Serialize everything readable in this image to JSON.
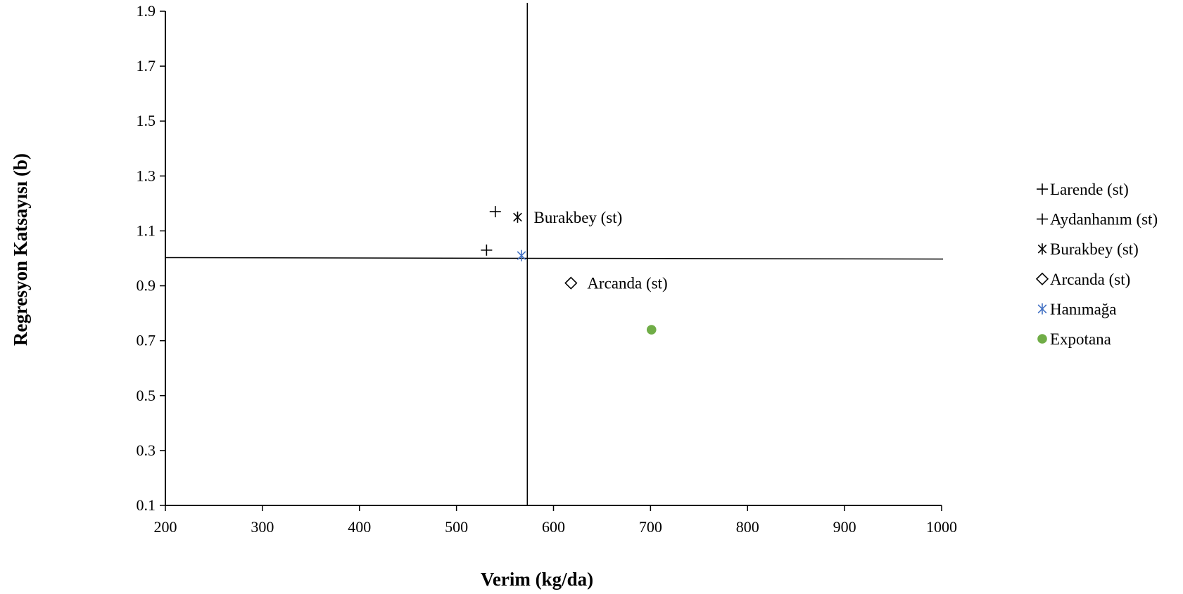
{
  "chart_data": {
    "type": "scatter",
    "title": "",
    "xlabel": "Verim (kg/da)",
    "ylabel": "Regresyon Katsayısı (b)",
    "xlim": [
      200,
      1000
    ],
    "ylim": [
      0.1,
      1.9
    ],
    "xticks": [
      "200",
      "300",
      "400",
      "500",
      "600",
      "700",
      "800",
      "900",
      "1000"
    ],
    "yticks": [
      "0.1",
      "0.3",
      "0.5",
      "0.7",
      "0.9",
      "1.1",
      "1.3",
      "1.5",
      "1.7",
      "1.9"
    ],
    "grid": false,
    "legend_position": "right",
    "reference_lines": {
      "x_mean": 573,
      "y": 1.0
    },
    "series": [
      {
        "name": "Larende (st)",
        "marker": "plus",
        "color": "#000000",
        "x": 540,
        "y": 1.17,
        "label": ""
      },
      {
        "name": "Aydanhanım (st)",
        "marker": "plus",
        "color": "#000000",
        "x": 531,
        "y": 1.03,
        "label": ""
      },
      {
        "name": "Burakbey (st)",
        "marker": "star",
        "color": "#000000",
        "x": 563,
        "y": 1.15,
        "label": "Burakbey (st)"
      },
      {
        "name": "Arcanda (st)",
        "marker": "diamond",
        "color": "#000000",
        "x": 618,
        "y": 0.91,
        "label": "Arcanda (st)"
      },
      {
        "name": "Hanımağa",
        "marker": "star",
        "color": "#4472C4",
        "x": 567,
        "y": 1.01,
        "label": ""
      },
      {
        "name": "Expotana",
        "marker": "circle",
        "color": "#70AD47",
        "x": 701,
        "y": 0.74,
        "label": ""
      }
    ]
  }
}
